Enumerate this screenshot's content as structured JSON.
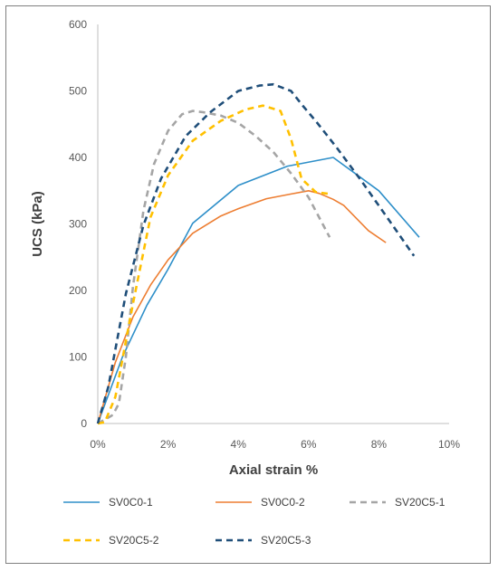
{
  "chart_data": {
    "type": "line",
    "xlabel": "Axial strain %",
    "ylabel": "UCS  (kPa)",
    "xlim": [
      0,
      10
    ],
    "ylim": [
      0,
      600
    ],
    "x_ticks": [
      0,
      2,
      4,
      6,
      8,
      10
    ],
    "x_tick_labels": [
      "0%",
      "2%",
      "4%",
      "6%",
      "8%",
      "10%"
    ],
    "y_ticks": [
      0,
      100,
      200,
      300,
      400,
      500,
      600
    ],
    "y_tick_labels": [
      "0",
      "100",
      "200",
      "300",
      "400",
      "500",
      "600"
    ],
    "grid": "none",
    "legend_position": "bottom",
    "series": [
      {
        "name": "SV0C0-1",
        "color": "#2e8fc9",
        "dash": "solid",
        "x": [
          0,
          0.7,
          1.4,
          2.0,
          2.7,
          4.0,
          5.4,
          6.7,
          8.0,
          9.15
        ],
        "y": [
          0,
          100,
          178,
          232,
          301,
          358,
          387,
          400,
          350,
          280
        ]
      },
      {
        "name": "SV0C0-2",
        "color": "#ed7d31",
        "dash": "solid",
        "x": [
          0,
          0.5,
          1.0,
          1.5,
          2.0,
          2.7,
          3.5,
          4.0,
          4.8,
          5.5,
          6.0,
          6.3,
          6.7,
          7.0,
          7.7,
          8.2
        ],
        "y": [
          0,
          92,
          160,
          208,
          246,
          286,
          312,
          323,
          338,
          345,
          350,
          346,
          337,
          328,
          290,
          272
        ]
      },
      {
        "name": "SV20C5-1",
        "color": "#a5a5a5",
        "dash": "dashed",
        "x": [
          0,
          0.4,
          0.5,
          0.6,
          0.8,
          1.0,
          1.3,
          1.6,
          2.0,
          2.4,
          2.7,
          3.0,
          3.5,
          4.0,
          4.5,
          5.0,
          5.5,
          6.0,
          6.4,
          6.6
        ],
        "y": [
          0,
          12,
          20,
          30,
          100,
          205,
          320,
          390,
          440,
          465,
          470,
          468,
          463,
          452,
          432,
          408,
          376,
          340,
          300,
          280
        ]
      },
      {
        "name": "SV20C5-2",
        "color": "#ffc000",
        "dash": "dashed",
        "x": [
          0,
          0.2,
          0.5,
          1.0,
          1.5,
          2.0,
          2.7,
          3.5,
          4.2,
          4.7,
          5.2,
          5.5,
          5.8,
          6.2,
          6.6
        ],
        "y": [
          0,
          2,
          40,
          180,
          310,
          373,
          425,
          455,
          472,
          478,
          470,
          428,
          368,
          348,
          345
        ]
      },
      {
        "name": "SV20C5-3",
        "color": "#1f4e79",
        "dash": "dashed",
        "x": [
          0,
          0.3,
          0.8,
          1.3,
          1.8,
          2.5,
          3.2,
          4.0,
          4.6,
          5.0,
          5.5,
          5.8,
          6.2,
          6.8,
          7.5,
          8.3,
          9.0
        ],
        "y": [
          0,
          55,
          195,
          298,
          368,
          432,
          468,
          500,
          508,
          510,
          500,
          480,
          455,
          415,
          365,
          305,
          252
        ]
      }
    ]
  }
}
